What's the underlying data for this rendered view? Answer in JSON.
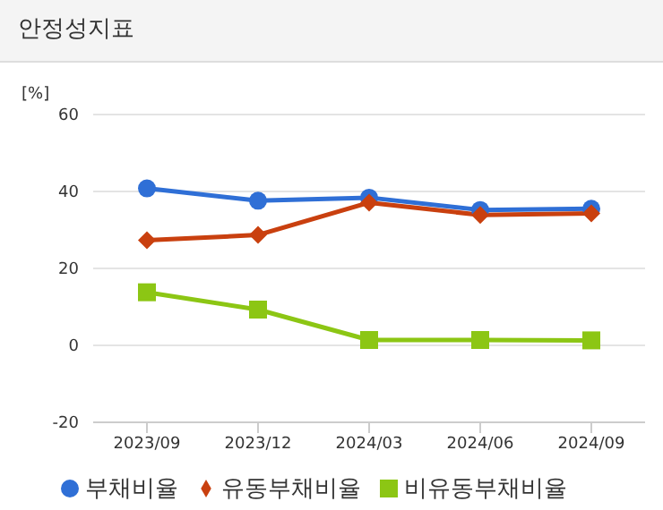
{
  "chart_data": {
    "type": "line",
    "title": "안정성지표",
    "ylabel": "[%]",
    "categories": [
      "2023/09",
      "2023/12",
      "2024/03",
      "2024/06",
      "2024/09"
    ],
    "series": [
      {
        "name": "부채비율",
        "color": "#2f6fd6",
        "marker": "circle",
        "values": [
          40.8,
          37.6,
          38.4,
          35.2,
          35.5
        ]
      },
      {
        "name": "유동부채비율",
        "color": "#c9400f",
        "marker": "diamond",
        "values": [
          27.3,
          28.7,
          37.1,
          33.9,
          34.3
        ]
      },
      {
        "name": "비유동부채비율",
        "color": "#8cc614",
        "marker": "square",
        "values": [
          13.8,
          9.3,
          1.4,
          1.4,
          1.3
        ]
      }
    ],
    "ylim": [
      -20,
      60
    ],
    "yticks": [
      -20,
      0,
      20,
      40,
      60
    ],
    "grid": "y",
    "legend": "bottom"
  }
}
